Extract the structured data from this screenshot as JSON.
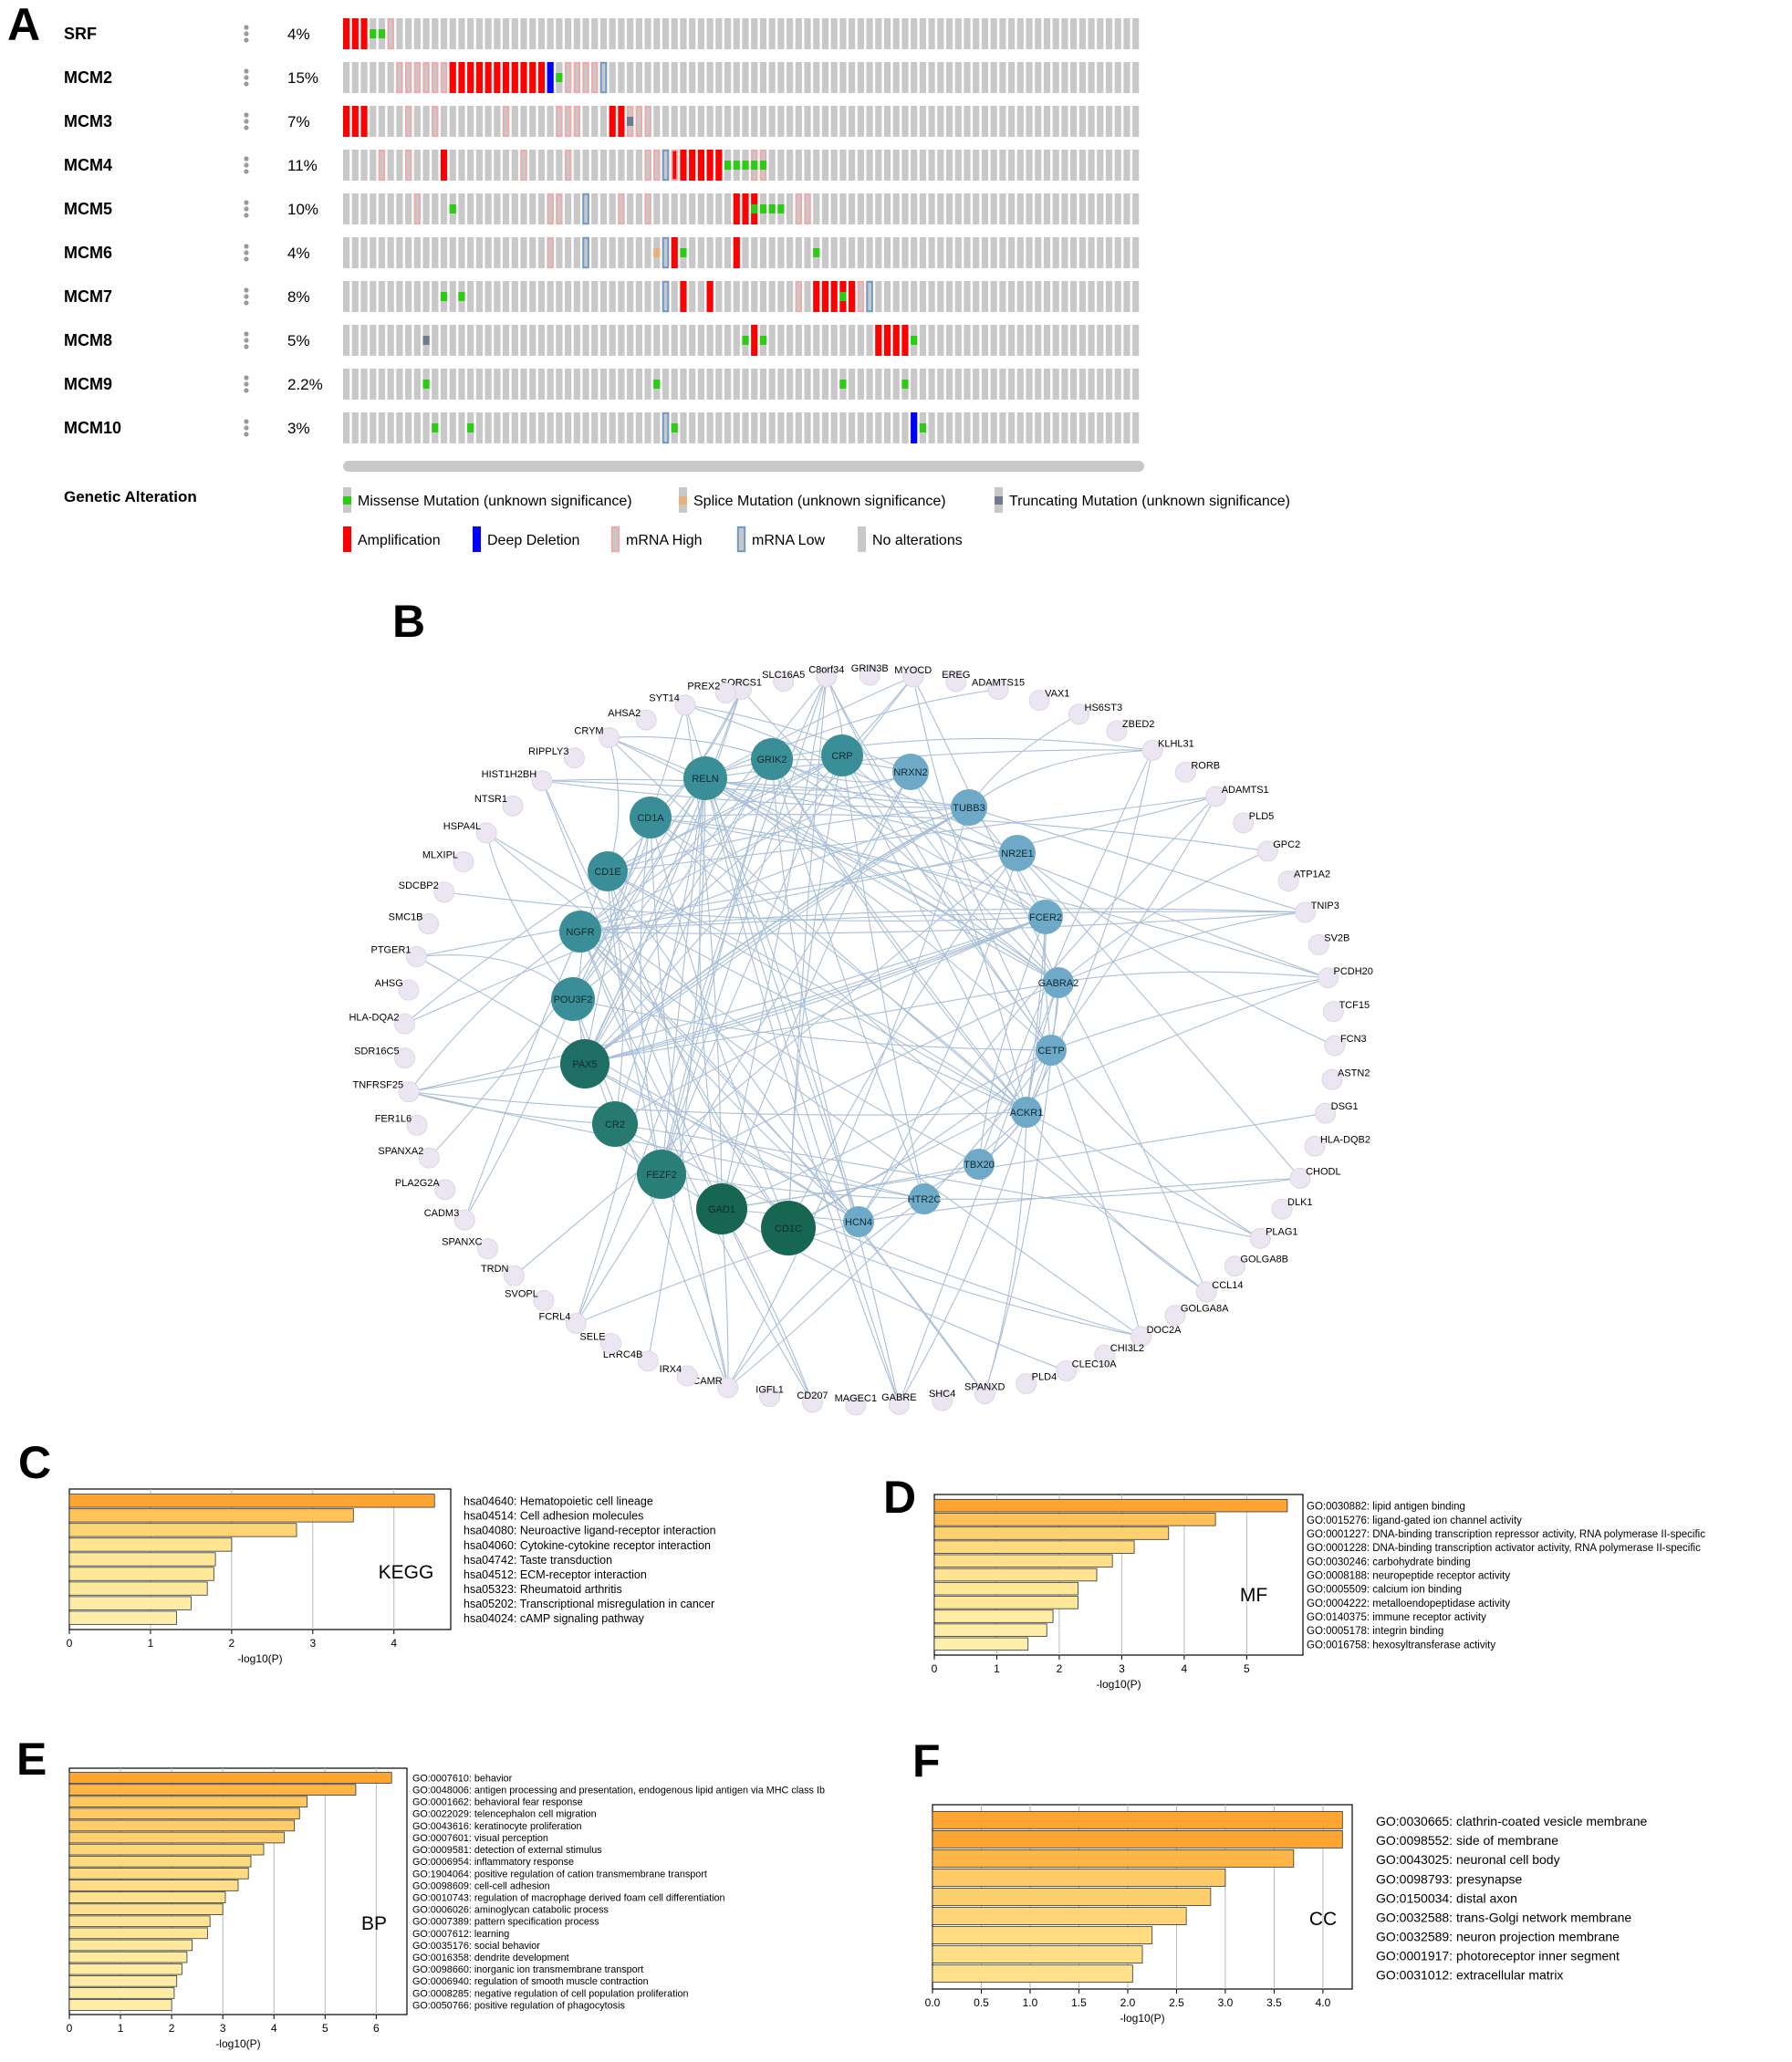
{
  "panel_letters": {
    "a": "A",
    "b": "B",
    "c": "C",
    "d": "D",
    "e": "E",
    "f": "F"
  },
  "oncoprint": {
    "n_samples": 90,
    "genes": [
      {
        "name": "SRF",
        "pct": "4%"
      },
      {
        "name": "MCM2",
        "pct": "15%"
      },
      {
        "name": "MCM3",
        "pct": "7%"
      },
      {
        "name": "MCM4",
        "pct": "11%"
      },
      {
        "name": "MCM5",
        "pct": "10%"
      },
      {
        "name": "MCM6",
        "pct": "4%"
      },
      {
        "name": "MCM7",
        "pct": "8%"
      },
      {
        "name": "MCM8",
        "pct": "5%"
      },
      {
        "name": "MCM9",
        "pct": "2.2%"
      },
      {
        "name": "MCM10",
        "pct": "3%"
      }
    ],
    "alterations": {
      "SRF": {
        "amp": [
          0,
          1,
          2
        ],
        "missense": [
          3,
          4
        ],
        "mrna_high": [
          5
        ]
      },
      "MCM2": {
        "mrna_high": [
          6,
          7,
          8,
          9,
          10,
          11
        ],
        "amp": [
          12,
          13,
          14,
          15,
          16,
          17,
          18,
          19,
          20,
          21,
          22
        ],
        "del": [
          23
        ],
        "missense": [
          24
        ],
        "mrna_high2": [
          25,
          26,
          27,
          28
        ],
        "mrna_low": [
          29
        ]
      },
      "MCM3": {
        "amp": [
          0,
          1,
          2,
          30,
          31
        ],
        "mrna_high": [
          7,
          10,
          18,
          24,
          25,
          26,
          32,
          33,
          34
        ],
        "trunc": [
          32
        ]
      },
      "MCM4": {
        "mrna_high": [
          4,
          7,
          20,
          25,
          34,
          35,
          36,
          37,
          46,
          47
        ],
        "amp": [
          11,
          37,
          38,
          39,
          40,
          41,
          42
        ],
        "mrna_low": [
          36
        ],
        "missense": [
          43,
          44,
          45,
          46,
          47
        ]
      },
      "MCM5": {
        "mrna_high": [
          8,
          23,
          24,
          31,
          34,
          51,
          52
        ],
        "missense": [
          12,
          46,
          47,
          48,
          49
        ],
        "mrna_low": [
          27
        ],
        "amp": [
          44,
          45,
          46
        ]
      },
      "MCM6": {
        "mrna_high": [
          23
        ],
        "mrna_low": [
          27,
          36
        ],
        "splice": [
          35
        ],
        "amp": [
          37,
          44
        ],
        "missense": [
          38,
          53
        ]
      },
      "MCM7": {
        "missense": [
          11,
          13,
          56
        ],
        "mrna_low": [
          36,
          59
        ],
        "amp": [
          38,
          41,
          53,
          54,
          55,
          56,
          57
        ],
        "mrna_high": [
          51,
          58
        ]
      },
      "MCM8": {
        "trunc": [
          9
        ],
        "missense": [
          45,
          47,
          64
        ],
        "amp": [
          46,
          60,
          61,
          62,
          63
        ]
      },
      "MCM9": {
        "missense": [
          9,
          35,
          56,
          63
        ]
      },
      "MCM10": {
        "missense": [
          10,
          14,
          37,
          65
        ],
        "mrna_low": [
          36
        ],
        "del": [
          64
        ]
      }
    },
    "legend_title": "Genetic Alteration",
    "legend": [
      {
        "key": "missense",
        "label": "Missense Mutation (unknown significance)",
        "color": "#2ccb14"
      },
      {
        "key": "splice",
        "label": "Splice Mutation (unknown significance)",
        "color": "#e8b17b"
      },
      {
        "key": "trunc",
        "label": "Truncating Mutation (unknown significance)",
        "color": "#6d7a90"
      },
      {
        "key": "amp",
        "label": "Amplification",
        "color": "#ff0000"
      },
      {
        "key": "del",
        "label": "Deep Deletion",
        "color": "#0000ff"
      },
      {
        "key": "mrna_high",
        "label": "mRNA High",
        "color": "#f3a7a7"
      },
      {
        "key": "mrna_low",
        "label": "mRNA Low",
        "color": "#6b9acb"
      },
      {
        "key": "none",
        "label": "No alterations",
        "color": "#c8c8c8"
      }
    ]
  },
  "network": {
    "hubs": [
      {
        "label": "GRIK2",
        "color": "#3a8e97"
      },
      {
        "label": "CRP",
        "color": "#3a8e97"
      },
      {
        "label": "RELN",
        "color": "#3a8e97"
      },
      {
        "label": "NRXN2",
        "color": "#6ea9c8"
      },
      {
        "label": "CD1A",
        "color": "#3a8e97"
      },
      {
        "label": "TUBB3",
        "color": "#6ea9c8"
      },
      {
        "label": "NR2E1",
        "color": "#6ea9c8"
      },
      {
        "label": "CD1E",
        "color": "#3a8e97"
      },
      {
        "label": "FCER2",
        "color": "#6ea9c8"
      },
      {
        "label": "NGFR",
        "color": "#3a8e97"
      },
      {
        "label": "GABRA2",
        "color": "#6ea9c8"
      },
      {
        "label": "POU3F2",
        "color": "#3a8e97"
      },
      {
        "label": "CETP",
        "color": "#6ea9c8"
      },
      {
        "label": "PAX5",
        "color": "#1f6e66"
      },
      {
        "label": "ACKR1",
        "color": "#6ea9c8"
      },
      {
        "label": "CR2",
        "color": "#277a6f"
      },
      {
        "label": "TBX20",
        "color": "#6ea9c8"
      },
      {
        "label": "FEZF2",
        "color": "#2a8078"
      },
      {
        "label": "GAD1",
        "color": "#176652"
      },
      {
        "label": "CD1C",
        "color": "#176652"
      },
      {
        "label": "HTR2C",
        "color": "#6ea9c8"
      },
      {
        "label": "HCN4",
        "color": "#6ea9c8"
      }
    ],
    "ring": [
      "SORCS1",
      "SLC16A5",
      "C8orf34",
      "GRIN3B",
      "MYOCD",
      "EREG",
      "ADAMTS15",
      "VAX1",
      "HS6ST3",
      "ZBED2",
      "KLHL31",
      "RORB",
      "ADAMTS1",
      "PLD5",
      "GPC2",
      "ATP1A2",
      "TNIP3",
      "SV2B",
      "PCDH20",
      "TCF15",
      "FCN3",
      "ASTN2",
      "DSG1",
      "HLA-DQB2",
      "CHODL",
      "DLK1",
      "PLAG1",
      "GOLGA8B",
      "CCL14",
      "GOLGA8A",
      "DOC2A",
      "CHI3L2",
      "CLEC10A",
      "PLD4",
      "SPANXD",
      "SHC4",
      "GABRE",
      "MAGEC1",
      "CD207",
      "IGFL1",
      "FCAMR",
      "IRX4",
      "LRRC4B",
      "SELE",
      "FCRL4",
      "SVOPL",
      "TRDN",
      "SPANXC",
      "CADM3",
      "PLA2G2A",
      "SPANXA2",
      "FER1L6",
      "TNFRSF25",
      "SDR16C5",
      "HLA-DQA2",
      "AHSG",
      "PTGER1",
      "SMC1B",
      "SDCBP2",
      "MLXIPL",
      "HSPA4L",
      "NTSR1",
      "HIST1H2BH",
      "RIPPLY3",
      "CRYM",
      "AHSA2",
      "SYT14",
      "PREX2"
    ]
  },
  "chart_data": [
    {
      "panel": "C",
      "type": "bar",
      "orientation": "horizontal",
      "categories": [
        "hsa04640: Hematopoietic cell lineage",
        "hsa04514: Cell adhesion molecules",
        "hsa04080: Neuroactive ligand-receptor interaction",
        "hsa04060: Cytokine-cytokine receptor interaction",
        "hsa04742: Taste transduction",
        "hsa04512: ECM-receptor interaction",
        "hsa05323: Rheumatoid arthritis",
        "hsa05202: Transcriptional misregulation in cancer",
        "hsa04024: cAMP signaling pathway"
      ],
      "values": [
        4.5,
        3.5,
        2.8,
        2.0,
        1.8,
        1.78,
        1.7,
        1.5,
        1.32
      ],
      "xlabel": "-log10(P)",
      "xlim": [
        0,
        4.7
      ],
      "xticks": [
        "0",
        "1",
        "2",
        "3",
        "4"
      ],
      "tickvals": [
        0,
        1,
        2,
        3,
        4
      ],
      "annotation": "KEGG",
      "grid": "vertical"
    },
    {
      "panel": "D",
      "type": "bar",
      "orientation": "horizontal",
      "categories": [
        "GO:0030882: lipid antigen binding",
        "GO:0015276: ligand-gated ion channel activity",
        "GO:0001227: DNA-binding transcription repressor activity, RNA polymerase II-specific",
        "GO:0001228: DNA-binding transcription activator activity, RNA polymerase II-specific",
        "GO:0030246: carbohydrate binding",
        "GO:0008188: neuropeptide receptor activity",
        "GO:0005509: calcium ion binding",
        "GO:0004222: metalloendopeptidase activity",
        "GO:0140375: immune receptor activity",
        "GO:0005178: integrin binding",
        "GO:0016758: hexosyltransferase activity"
      ],
      "values": [
        5.65,
        4.5,
        3.75,
        3.2,
        2.85,
        2.6,
        2.3,
        2.3,
        1.9,
        1.8,
        1.5
      ],
      "xlabel": "-log10(P)",
      "xlim": [
        0,
        5.9
      ],
      "xticks": [
        "0",
        "1",
        "2",
        "3",
        "4",
        "5"
      ],
      "tickvals": [
        0,
        1,
        2,
        3,
        4,
        5
      ],
      "annotation": "MF",
      "grid": "vertical"
    },
    {
      "panel": "E",
      "type": "bar",
      "orientation": "horizontal",
      "categories": [
        "GO:0007610: behavior",
        "GO:0048006: antigen processing and presentation, endogenous lipid antigen via MHC class Ib",
        "GO:0001662: behavioral fear response",
        "GO:0022029: telencephalon cell migration",
        "GO:0043616: keratinocyte proliferation",
        "GO:0007601: visual perception",
        "GO:0009581: detection of external stimulus",
        "GO:0006954: inflammatory response",
        "GO:1904064: positive regulation of cation transmembrane transport",
        "GO:0098609: cell-cell adhesion",
        "GO:0010743: regulation of macrophage derived foam cell differentiation",
        "GO:0006026: aminoglycan catabolic process",
        "GO:0007389: pattern specification process",
        "GO:0007612: learning",
        "GO:0035176: social behavior",
        "GO:0016358: dendrite development",
        "GO:0098660: inorganic ion transmembrane transport",
        "GO:0006940: regulation of smooth muscle contraction",
        "GO:0008285: negative regulation of cell population proliferation",
        "GO:0050766: positive regulation of phagocytosis"
      ],
      "values": [
        6.3,
        5.6,
        4.65,
        4.5,
        4.4,
        4.2,
        3.8,
        3.55,
        3.5,
        3.3,
        3.05,
        3.0,
        2.75,
        2.7,
        2.4,
        2.3,
        2.2,
        2.1,
        2.05,
        2.0
      ],
      "xlabel": "-log10(P)",
      "xlim": [
        0,
        6.6
      ],
      "xticks": [
        "0",
        "1",
        "2",
        "3",
        "4",
        "5",
        "6"
      ],
      "tickvals": [
        0,
        1,
        2,
        3,
        4,
        5,
        6
      ],
      "annotation": "BP",
      "grid": "vertical"
    },
    {
      "panel": "F",
      "type": "bar",
      "orientation": "horizontal",
      "categories": [
        "GO:0030665: clathrin-coated vesicle membrane",
        "GO:0098552: side of membrane",
        "GO:0043025: neuronal cell body",
        "GO:0098793: presynapse",
        "GO:0150034: distal axon",
        "GO:0032588: trans-Golgi network membrane",
        "GO:0032589: neuron projection membrane",
        "GO:0001917: photoreceptor inner segment",
        "GO:0031012: extracellular matrix"
      ],
      "values": [
        4.2,
        4.2,
        3.7,
        3.0,
        2.85,
        2.6,
        2.25,
        2.15,
        2.05
      ],
      "xlabel": "-log10(P)",
      "xlim": [
        0,
        4.3
      ],
      "xticks": [
        "0.0",
        "0.5",
        "1.0",
        "1.5",
        "2.0",
        "2.5",
        "3.0",
        "3.5",
        "4.0"
      ],
      "tickvals": [
        0,
        0.5,
        1,
        1.5,
        2,
        2.5,
        3,
        3.5,
        4
      ],
      "annotation": "CC",
      "grid": "vertical"
    }
  ]
}
